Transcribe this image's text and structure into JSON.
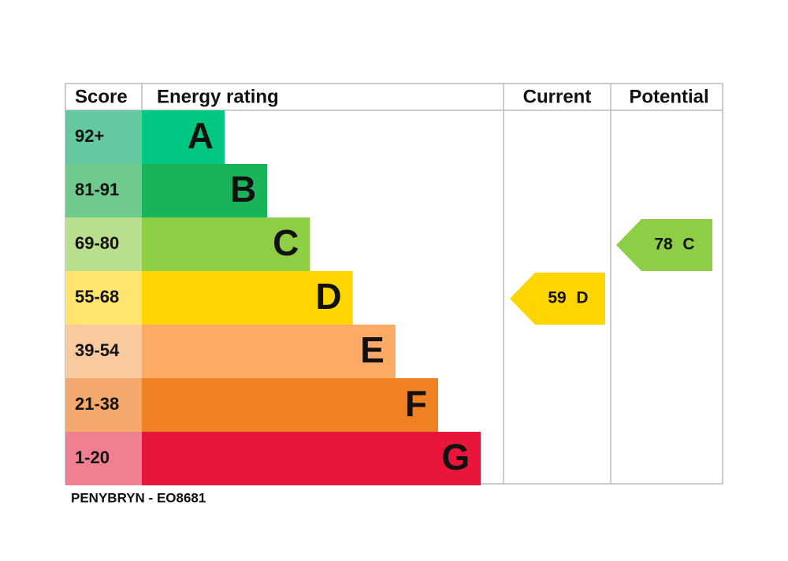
{
  "header": {
    "score": "Score",
    "rating": "Energy rating",
    "current": "Current",
    "potential": "Potential"
  },
  "bands": [
    {
      "score": "92+",
      "letter": "A",
      "color": "#00c781",
      "light": "#64c9a0"
    },
    {
      "score": "81-91",
      "letter": "B",
      "color": "#19b459",
      "light": "#6dc98c"
    },
    {
      "score": "69-80",
      "letter": "C",
      "color": "#8dce46",
      "light": "#b9de8d"
    },
    {
      "score": "55-68",
      "letter": "D",
      "color": "#ffd500",
      "light": "#ffe470"
    },
    {
      "score": "39-54",
      "letter": "E",
      "color": "#fcaa65",
      "light": "#f9caa0"
    },
    {
      "score": "21-38",
      "letter": "F",
      "color": "#ef8023",
      "light": "#f3a86c"
    },
    {
      "score": "1-20",
      "letter": "G",
      "color": "#e9153b",
      "light": "#f07f91"
    }
  ],
  "current": {
    "score": 59,
    "band": "D"
  },
  "potential": {
    "score": 78,
    "band": "C"
  },
  "footer": "PENYBRYN - EO8681"
}
